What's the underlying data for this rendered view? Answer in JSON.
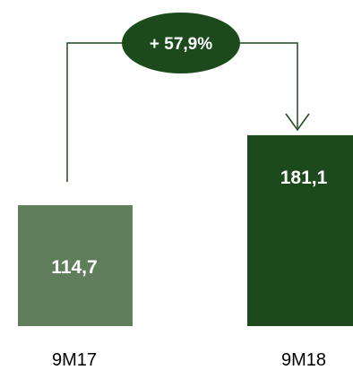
{
  "chart_data": {
    "type": "bar",
    "categories": [
      "9M17",
      "9M18"
    ],
    "values": [
      114.7,
      181.1
    ],
    "value_labels": [
      "114,7",
      "181,1"
    ],
    "bar_colors": [
      "#617E5C",
      "#1D4A1C"
    ],
    "change_label": "+ 57,9%",
    "change_color": "#1D4A1C",
    "ylim": [
      0,
      250
    ],
    "grid": false,
    "legend": "none"
  }
}
